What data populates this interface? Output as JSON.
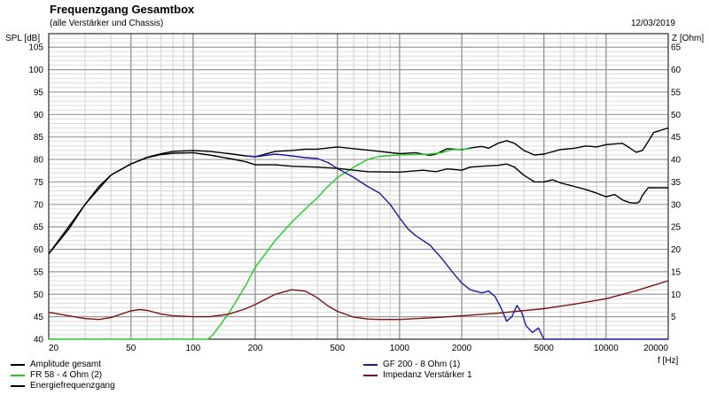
{
  "header": {
    "title": "Frequenzgang Gesamtbox",
    "subtitle": "(alle Verstärker und Chassis)",
    "date": "12/03/2019"
  },
  "chart_data": {
    "type": "line",
    "ylabel": "SPL [dB]",
    "y2label": "Z [Ohm]",
    "xlabel": "f [Hz]",
    "xscale": "log",
    "xlim": [
      20,
      20000
    ],
    "ylim": [
      40,
      108
    ],
    "y2lim": [
      0,
      68
    ],
    "grid": true,
    "legend_placement": "bottom",
    "x_ticks": [
      20,
      50,
      100,
      200,
      500,
      1000,
      2000,
      5000,
      10000,
      20000
    ],
    "x_tick_labels": [
      "20",
      "50",
      "100",
      "200",
      "500",
      "1000",
      "2000",
      "5000",
      "10000",
      "20000"
    ],
    "y_ticks": [
      40,
      45,
      50,
      55,
      60,
      65,
      70,
      75,
      80,
      85,
      90,
      95,
      100,
      105
    ],
    "y_tick_labels": [
      "40",
      "45",
      "50",
      "55",
      "60",
      "65",
      "70",
      "75",
      "80",
      "85",
      "90",
      "95",
      "100",
      "105"
    ],
    "y2_ticks": [
      5,
      10,
      15,
      20,
      25,
      30,
      35,
      40,
      45,
      50,
      55,
      60,
      65
    ],
    "y2_tick_labels": [
      "5",
      "10",
      "15",
      "20",
      "25",
      "30",
      "35",
      "40",
      "45",
      "50",
      "55",
      "60",
      "65"
    ],
    "series": [
      {
        "name": "Amplitude gesamt",
        "color": "#000000",
        "axis": "left",
        "points": [
          [
            20,
            59
          ],
          [
            25,
            64.5
          ],
          [
            30,
            70
          ],
          [
            35,
            74
          ],
          [
            40,
            76.5
          ],
          [
            50,
            79
          ],
          [
            60,
            80.5
          ],
          [
            70,
            81.3
          ],
          [
            80,
            81.8
          ],
          [
            100,
            82
          ],
          [
            120,
            81.8
          ],
          [
            150,
            81.3
          ],
          [
            180,
            80.8
          ],
          [
            200,
            80.6
          ],
          [
            250,
            81.8
          ],
          [
            300,
            82
          ],
          [
            350,
            82.3
          ],
          [
            400,
            82.3
          ],
          [
            500,
            82.8
          ],
          [
            600,
            82.4
          ],
          [
            700,
            82.1
          ],
          [
            800,
            81.8
          ],
          [
            1000,
            81.3
          ],
          [
            1200,
            81.5
          ],
          [
            1400,
            80.9
          ],
          [
            1500,
            81.2
          ],
          [
            1700,
            82.4
          ],
          [
            2000,
            82.2
          ],
          [
            2300,
            82.7
          ],
          [
            2500,
            82.9
          ],
          [
            2700,
            82.5
          ],
          [
            3000,
            83.6
          ],
          [
            3300,
            84.2
          ],
          [
            3600,
            83.6
          ],
          [
            4000,
            82
          ],
          [
            4500,
            81
          ],
          [
            5000,
            81.2
          ],
          [
            6000,
            82.2
          ],
          [
            7000,
            82.5
          ],
          [
            8000,
            83
          ],
          [
            9000,
            82.8
          ],
          [
            10000,
            83.3
          ],
          [
            12000,
            83.6
          ],
          [
            13000,
            82.6
          ],
          [
            14000,
            81.6
          ],
          [
            15000,
            82
          ],
          [
            16000,
            84
          ],
          [
            17000,
            86
          ],
          [
            20000,
            87
          ]
        ]
      },
      {
        "name": "FR 58 - 4 Ohm (2)",
        "color": "#22cc22",
        "axis": "left",
        "points": [
          [
            20,
            40
          ],
          [
            118,
            40
          ],
          [
            125,
            41
          ],
          [
            150,
            46
          ],
          [
            180,
            52
          ],
          [
            200,
            56
          ],
          [
            250,
            62
          ],
          [
            300,
            66
          ],
          [
            350,
            69
          ],
          [
            400,
            71.5
          ],
          [
            450,
            74
          ],
          [
            500,
            76
          ],
          [
            600,
            78.3
          ],
          [
            700,
            80
          ],
          [
            800,
            80.7
          ],
          [
            1000,
            81
          ],
          [
            1200,
            81.1
          ],
          [
            1400,
            81.2
          ],
          [
            1600,
            81.5
          ],
          [
            1800,
            82.2
          ],
          [
            2000,
            82.3
          ],
          [
            2200,
            82.4
          ]
        ]
      },
      {
        "name": "GF 200 - 8 Ohm (1)",
        "color": "#1a1aa8",
        "axis": "left",
        "points": [
          [
            180,
            80.8
          ],
          [
            200,
            80.6
          ],
          [
            250,
            81.2
          ],
          [
            300,
            80.8
          ],
          [
            350,
            80.4
          ],
          [
            400,
            80.2
          ],
          [
            450,
            79.3
          ],
          [
            500,
            78
          ],
          [
            600,
            76
          ],
          [
            700,
            74
          ],
          [
            800,
            72.5
          ],
          [
            900,
            70
          ],
          [
            1000,
            67
          ],
          [
            1100,
            64.5
          ],
          [
            1200,
            63
          ],
          [
            1400,
            61
          ],
          [
            1600,
            58
          ],
          [
            1800,
            55
          ],
          [
            2000,
            52.5
          ],
          [
            2200,
            51
          ],
          [
            2500,
            50.3
          ],
          [
            2700,
            50.7
          ],
          [
            2900,
            49.5
          ],
          [
            3100,
            47
          ],
          [
            3300,
            44
          ],
          [
            3500,
            45
          ],
          [
            3700,
            47.5
          ],
          [
            3900,
            46
          ],
          [
            4100,
            43
          ],
          [
            4400,
            41.5
          ],
          [
            4700,
            42.5
          ],
          [
            5000,
            40
          ],
          [
            20000,
            40
          ]
        ]
      },
      {
        "name": "Impedanz Verstärker 1",
        "color": "#7a1414",
        "axis": "right",
        "points": [
          [
            20,
            6
          ],
          [
            25,
            5.2
          ],
          [
            30,
            4.6
          ],
          [
            35,
            4.4
          ],
          [
            40,
            4.8
          ],
          [
            45,
            5.6
          ],
          [
            50,
            6.3
          ],
          [
            55,
            6.6
          ],
          [
            60,
            6.4
          ],
          [
            70,
            5.6
          ],
          [
            80,
            5.2
          ],
          [
            100,
            5
          ],
          [
            120,
            5
          ],
          [
            150,
            5.6
          ],
          [
            180,
            6.8
          ],
          [
            200,
            7.7
          ],
          [
            250,
            10
          ],
          [
            300,
            11
          ],
          [
            350,
            10.7
          ],
          [
            400,
            9.2
          ],
          [
            450,
            7.4
          ],
          [
            500,
            6.2
          ],
          [
            600,
            4.9
          ],
          [
            700,
            4.5
          ],
          [
            800,
            4.4
          ],
          [
            1000,
            4.4
          ],
          [
            1500,
            4.8
          ],
          [
            2000,
            5.2
          ],
          [
            3000,
            5.8
          ],
          [
            5000,
            6.8
          ],
          [
            7000,
            7.8
          ],
          [
            10000,
            9
          ],
          [
            14000,
            10.8
          ],
          [
            17000,
            12
          ],
          [
            20000,
            13
          ]
        ]
      },
      {
        "name": "Energiefrequenzgang",
        "color": "#000000",
        "axis": "left",
        "points": [
          [
            20,
            59
          ],
          [
            30,
            70
          ],
          [
            40,
            76.5
          ],
          [
            50,
            79
          ],
          [
            60,
            80.4
          ],
          [
            70,
            81.1
          ],
          [
            80,
            81.4
          ],
          [
            100,
            81.5
          ],
          [
            120,
            81
          ],
          [
            150,
            80.2
          ],
          [
            180,
            79.5
          ],
          [
            200,
            78.8
          ],
          [
            250,
            78.8
          ],
          [
            300,
            78.5
          ],
          [
            400,
            78.3
          ],
          [
            500,
            78
          ],
          [
            700,
            77.3
          ],
          [
            1000,
            77.2
          ],
          [
            1300,
            77.6
          ],
          [
            1500,
            77.3
          ],
          [
            1700,
            77.9
          ],
          [
            2000,
            77.6
          ],
          [
            2200,
            78.3
          ],
          [
            2500,
            78.5
          ],
          [
            3000,
            78.7
          ],
          [
            3300,
            79
          ],
          [
            3600,
            78.3
          ],
          [
            4000,
            76.5
          ],
          [
            4500,
            75
          ],
          [
            5000,
            75
          ],
          [
            5500,
            75.5
          ],
          [
            6000,
            74.8
          ],
          [
            7000,
            74
          ],
          [
            8000,
            73.3
          ],
          [
            9000,
            72.5
          ],
          [
            10000,
            71.7
          ],
          [
            11000,
            72.2
          ],
          [
            12000,
            71
          ],
          [
            13000,
            70.4
          ],
          [
            14000,
            70.3
          ],
          [
            14500,
            70.6
          ],
          [
            15000,
            72
          ],
          [
            16000,
            73.7
          ],
          [
            20000,
            73.7
          ]
        ]
      }
    ]
  }
}
